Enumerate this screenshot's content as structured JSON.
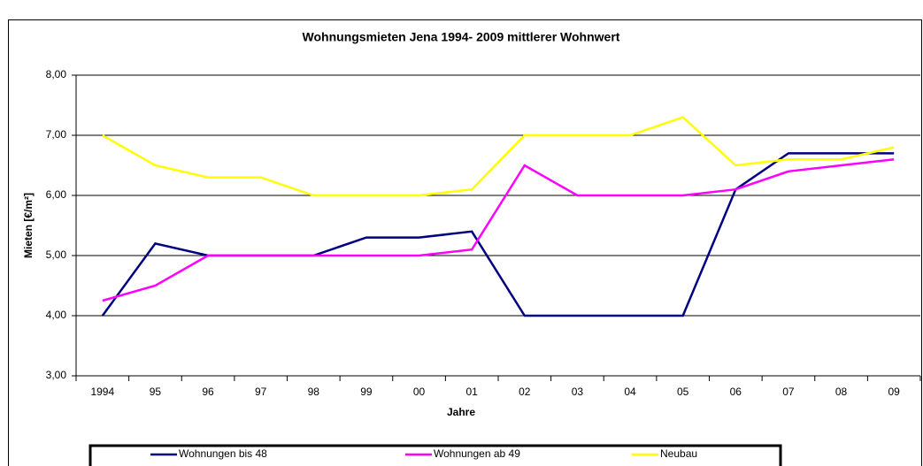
{
  "chart_data": {
    "type": "line",
    "title": "Wohnungsmieten Jena 1994- 2009 mittlerer Wohnwert",
    "x_label": "Jahre",
    "y_label": "Mieten [€/m²]",
    "categories": [
      "1994",
      "95",
      "96",
      "97",
      "98",
      "99",
      "00",
      "01",
      "02",
      "03",
      "04",
      "05",
      "06",
      "07",
      "08",
      "09"
    ],
    "series": [
      {
        "name": "Wohnungen bis 48",
        "color": "#000080",
        "values": [
          4.0,
          5.2,
          5.0,
          5.0,
          5.0,
          5.3,
          5.3,
          5.4,
          4.0,
          4.0,
          4.0,
          4.0,
          6.1,
          6.7,
          6.7,
          6.7
        ]
      },
      {
        "name": "Wohnungen ab 49",
        "color": "#ff00ff",
        "values": [
          4.25,
          4.5,
          5.0,
          5.0,
          5.0,
          5.0,
          5.0,
          5.1,
          6.5,
          6.0,
          6.0,
          6.0,
          6.1,
          6.4,
          6.5,
          6.6
        ]
      },
      {
        "name": "Neubau",
        "color": "#ffff00",
        "values": [
          7.0,
          6.5,
          6.3,
          6.3,
          6.0,
          6.0,
          6.0,
          6.1,
          7.0,
          7.0,
          7.0,
          7.3,
          6.5,
          6.6,
          6.6,
          6.8
        ]
      }
    ],
    "ylim": [
      3,
      8
    ],
    "yticks": [
      {
        "value": 3,
        "label": "3,00"
      },
      {
        "value": 4,
        "label": "4,00"
      },
      {
        "value": 5,
        "label": "5,00"
      },
      {
        "value": 6,
        "label": "6,00"
      },
      {
        "value": 7,
        "label": "7,00"
      },
      {
        "value": 8,
        "label": "8,00"
      }
    ],
    "grid": true,
    "legend": "bottom"
  }
}
